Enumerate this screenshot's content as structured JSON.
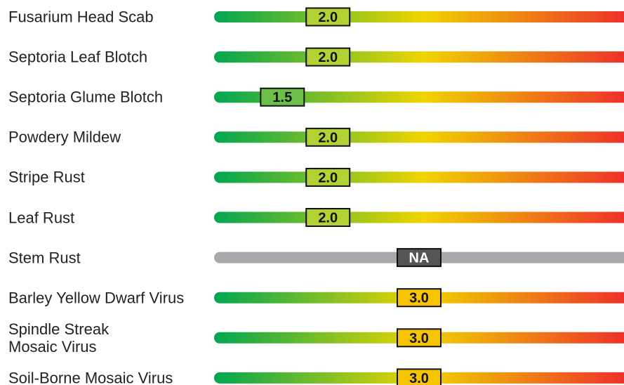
{
  "chart_data": {
    "type": "rating-scale",
    "categories": [
      "Fusarium Head Scab",
      "Septoria Leaf Blotch",
      "Septoria Glume Blotch",
      "Powdery Mildew",
      "Stripe Rust",
      "Leaf Rust",
      "Stem Rust",
      "Barley Yellow Dwarf Virus",
      "Spindle Streak\nMosaic Virus",
      "Soil-Borne Mosaic Virus"
    ],
    "values": [
      2.0,
      2.0,
      1.5,
      2.0,
      2.0,
      2.0,
      null,
      3.0,
      3.0,
      3.0
    ],
    "value_labels": [
      "2.0",
      "2.0",
      "1.5",
      "2.0",
      "2.0",
      "2.0",
      "NA",
      "3.0",
      "3.0",
      "3.0"
    ],
    "marker_colors": [
      "#b3d335",
      "#b3d335",
      "#6cc04a",
      "#b3d335",
      "#b3d335",
      "#b3d335",
      "#555555",
      "#f6c400",
      "#f6c400",
      "#f6c400"
    ],
    "xlim": [
      0.75,
      5.25
    ],
    "scale_colors": [
      "#00a651",
      "#f0d500",
      "#ee2b2b"
    ],
    "na_color": "#a7a9ac"
  }
}
